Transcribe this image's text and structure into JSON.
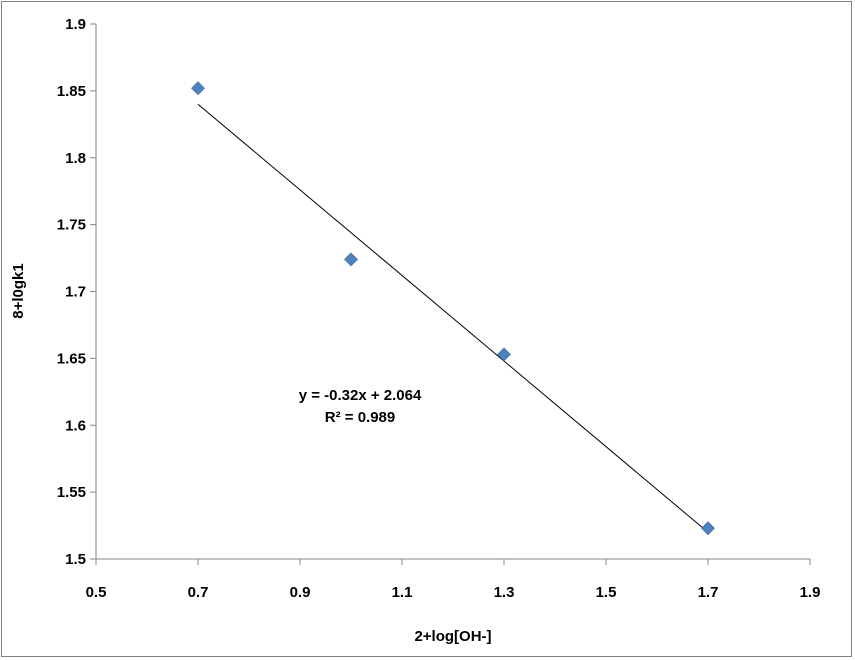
{
  "chart_data": {
    "type": "scatter",
    "xlabel": "2+log[OH-]",
    "ylabel": "8+l0gk1",
    "xlim": [
      0.5,
      1.9
    ],
    "ylim": [
      1.5,
      1.9
    ],
    "x_ticks": [
      "0.5",
      "0.7",
      "0.9",
      "1.1",
      "1.3",
      "1.5",
      "1.7",
      "1.9"
    ],
    "y_ticks": [
      "1.5",
      "1.55",
      "1.6",
      "1.65",
      "1.7",
      "1.75",
      "1.8",
      "1.85",
      "1.9"
    ],
    "grid": false,
    "series": [
      {
        "x": [
          0.7,
          1.0,
          1.3,
          1.7
        ],
        "y": [
          1.852,
          1.724,
          1.653,
          1.523
        ],
        "marker": "diamond",
        "color": "#4F81BD"
      }
    ],
    "trendline": {
      "slope": -0.32,
      "intercept": 2.064,
      "x_range": [
        0.7,
        1.7
      ],
      "color": "#000000",
      "equation": "y = -0.32x + 2.064",
      "r_squared": "R² = 0.989"
    }
  }
}
